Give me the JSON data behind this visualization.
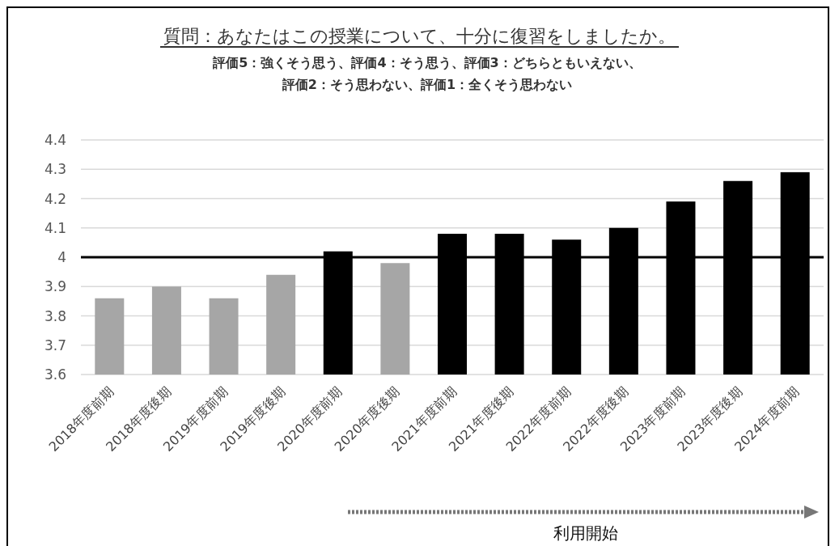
{
  "chart_data": {
    "type": "bar",
    "title": "質問：あなたはこの授業について、十分に復習をしましたか。",
    "subtitle": "評価5：強くそう思う、評価4：そう思う、評価3：どちらともいえない、評価2：そう思わない、評価1：全くそう思わない",
    "categories": [
      "2018年度前期",
      "2018年度後期",
      "2019年度前期",
      "2019年度後期",
      "2020年度前期",
      "2020年度後期",
      "2021年度前期",
      "2021年度後期",
      "2022年度前期",
      "2022年度後期",
      "2023年度前期",
      "2023年度後期",
      "2024年度前期"
    ],
    "values": [
      3.86,
      3.9,
      3.86,
      3.94,
      4.02,
      3.98,
      4.08,
      4.08,
      4.06,
      4.1,
      4.19,
      4.26,
      4.29
    ],
    "colors": [
      "#a6a6a6",
      "#a6a6a6",
      "#a6a6a6",
      "#a6a6a6",
      "#000000",
      "#a6a6a6",
      "#000000",
      "#000000",
      "#000000",
      "#000000",
      "#000000",
      "#000000",
      "#000000"
    ],
    "ylim": [
      3.6,
      4.4
    ],
    "yticks": [
      3.6,
      3.7,
      3.8,
      3.9,
      {
        "value": 4,
        "label": "4"
      },
      4.1,
      4.2,
      4.3,
      4.4
    ],
    "grid": "y",
    "ref_lines": [
      {
        "axis": "y",
        "value": 4,
        "color": "#000000"
      }
    ],
    "annotations": [
      "利用開始"
    ]
  }
}
